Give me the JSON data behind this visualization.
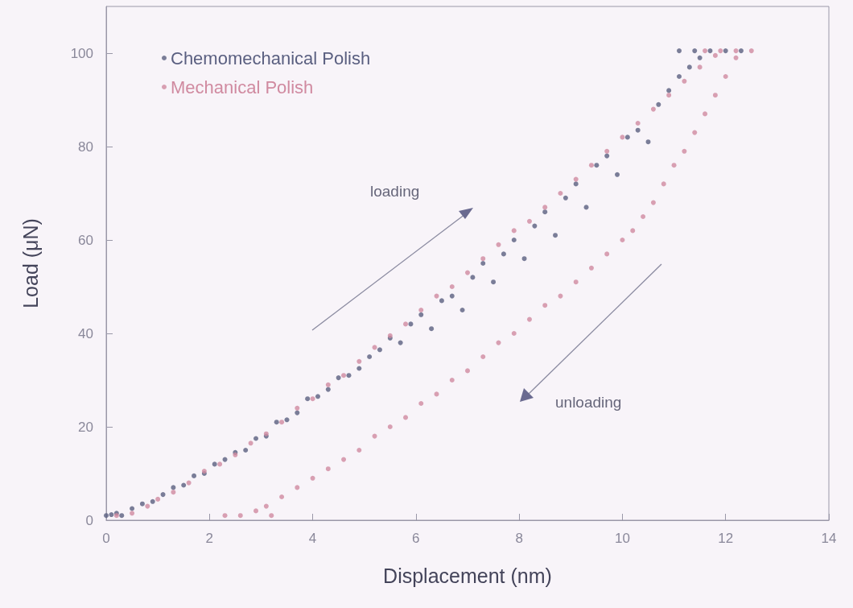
{
  "chart_data": {
    "type": "scatter",
    "xlabel": "Displacement (nm)",
    "ylabel": "Load (μN)",
    "xlim": [
      0,
      14
    ],
    "xticks": [
      0,
      2,
      4,
      6,
      8,
      10,
      12,
      14
    ],
    "ylim": [
      0,
      110
    ],
    "yticks": [
      0,
      20,
      40,
      60,
      80,
      100
    ],
    "legend": "top left",
    "marker": "circle",
    "grid": false,
    "annotations": [
      "loading",
      "unloading"
    ],
    "series": [
      {
        "name": "Chemomechanical Polish",
        "color": "#5a5f80",
        "x": [
          0,
          0.1,
          0.2,
          0.3,
          0.5,
          0.7,
          0.9,
          1.1,
          1.3,
          1.5,
          1.7,
          1.9,
          2.1,
          2.3,
          2.5,
          2.7,
          2.9,
          3.1,
          3.3,
          3.5,
          3.7,
          3.9,
          4.1,
          4.3,
          4.5,
          4.7,
          4.9,
          5.1,
          5.3,
          5.5,
          5.7,
          5.9,
          6.1,
          6.3,
          6.5,
          6.7,
          6.9,
          7.1,
          7.3,
          7.5,
          7.7,
          7.9,
          8.1,
          8.3,
          8.5,
          8.7,
          8.9,
          9.1,
          9.3,
          9.5,
          9.7,
          9.9,
          10.1,
          10.3,
          10.5,
          10.7,
          10.9,
          11.1,
          11.3,
          11.5,
          11.1,
          11.4,
          11.7,
          12.0,
          12.3
        ],
        "values": [
          1,
          1.2,
          1.5,
          1,
          2.5,
          3.5,
          4,
          5.5,
          7,
          7.5,
          9.5,
          10,
          12,
          13,
          14.5,
          15,
          17.5,
          18,
          21,
          21.5,
          23,
          26,
          26.5,
          28,
          30.5,
          31,
          32.5,
          35,
          36.5,
          39,
          38,
          42,
          44,
          41,
          47,
          48,
          45,
          52,
          55,
          51,
          57,
          60,
          56,
          63,
          66,
          61,
          69,
          72,
          67,
          76,
          78,
          74,
          82,
          83.5,
          81,
          89,
          92,
          95,
          97,
          99,
          100.5,
          100.5,
          100.5,
          100.5,
          100.5
        ]
      },
      {
        "name": "Mechanical Polish",
        "color": "#d08aa0",
        "x": [
          0.2,
          0.5,
          0.8,
          1.0,
          1.3,
          1.6,
          1.9,
          2.2,
          2.5,
          2.8,
          3.1,
          3.4,
          3.7,
          4.0,
          4.3,
          4.6,
          4.9,
          5.2,
          5.5,
          5.8,
          6.1,
          6.4,
          6.7,
          7.0,
          7.3,
          7.6,
          7.9,
          8.2,
          8.5,
          8.8,
          9.1,
          9.4,
          9.7,
          10.0,
          10.3,
          10.6,
          10.9,
          11.2,
          11.5,
          11.8,
          11.6,
          11.9,
          12.2,
          12.5,
          12.2,
          12.0,
          11.8,
          11.6,
          11.4,
          11.2,
          11.0,
          10.8,
          10.6,
          10.4,
          10.2,
          10.0,
          9.7,
          9.4,
          9.1,
          8.8,
          8.5,
          8.2,
          7.9,
          7.6,
          7.3,
          7.0,
          6.7,
          6.4,
          6.1,
          5.8,
          5.5,
          5.2,
          4.9,
          4.6,
          4.3,
          4.0,
          3.7,
          3.4,
          3.1,
          2.9,
          2.6,
          2.3,
          3.2
        ],
        "values": [
          1,
          1.5,
          3,
          4.5,
          6,
          8,
          10.5,
          12,
          14,
          16.5,
          18.5,
          21,
          24,
          26,
          29,
          31,
          34,
          37,
          39.5,
          42,
          45,
          48,
          50,
          53,
          56,
          59,
          62,
          64,
          67,
          70,
          73,
          76,
          79,
          82,
          85,
          88,
          91,
          94,
          97,
          99.5,
          100.5,
          100.5,
          100.5,
          100.5,
          99,
          95,
          91,
          87,
          83,
          79,
          76,
          72,
          68,
          65,
          62,
          60,
          57,
          54,
          51,
          48,
          46,
          43,
          40,
          38,
          35,
          32,
          30,
          27,
          25,
          22,
          20,
          18,
          15,
          13,
          11,
          9,
          7,
          5,
          3,
          2,
          1,
          1,
          1
        ]
      }
    ]
  }
}
